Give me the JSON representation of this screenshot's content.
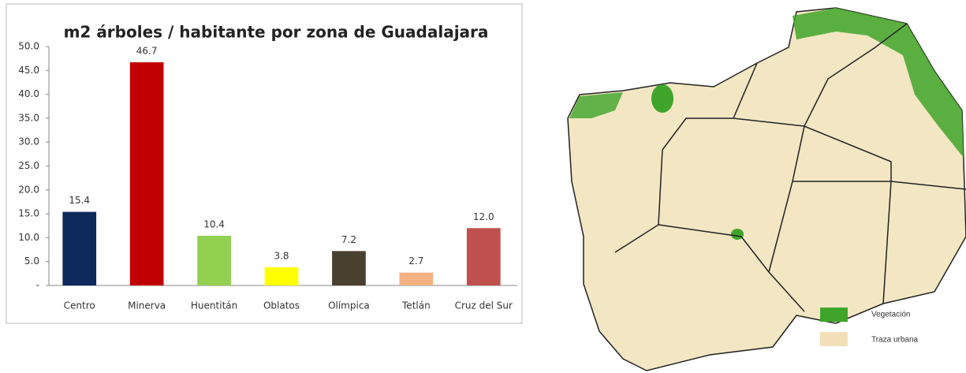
{
  "chart_data": {
    "type": "bar",
    "title": "m2 árboles / habitante por zona de Guadalajara",
    "categories": [
      "Centro",
      "Minerva",
      "Huentitán",
      "Oblatos",
      "Olímpica",
      "Tetlán",
      "Cruz del Sur"
    ],
    "values": [
      15.4,
      46.7,
      10.4,
      3.8,
      7.2,
      2.7,
      12.0
    ],
    "value_labels": [
      "15.4",
      "46.7",
      "10.4",
      "3.8",
      "7.2",
      "2.7",
      "12.0"
    ],
    "colors": [
      "#0e2a5c",
      "#c00000",
      "#92d050",
      "#ffff00",
      "#4a4030",
      "#f4b183",
      "#c0504d"
    ],
    "ylim": [
      0,
      50
    ],
    "yticks": [
      {
        "value": 0,
        "label": "-"
      },
      {
        "value": 5,
        "label": "5.0"
      },
      {
        "value": 10,
        "label": "10.0"
      },
      {
        "value": 15,
        "label": "15.0"
      },
      {
        "value": 20,
        "label": "20.0"
      },
      {
        "value": 25,
        "label": "25.0"
      },
      {
        "value": 30,
        "label": "30.0"
      },
      {
        "value": 35,
        "label": "35.0"
      },
      {
        "value": 40,
        "label": "40.0"
      },
      {
        "value": 45,
        "label": "45.0"
      },
      {
        "value": 50,
        "label": "50.0"
      }
    ]
  },
  "map": {
    "legend": [
      "Vegetación",
      "Traza urbana"
    ]
  }
}
